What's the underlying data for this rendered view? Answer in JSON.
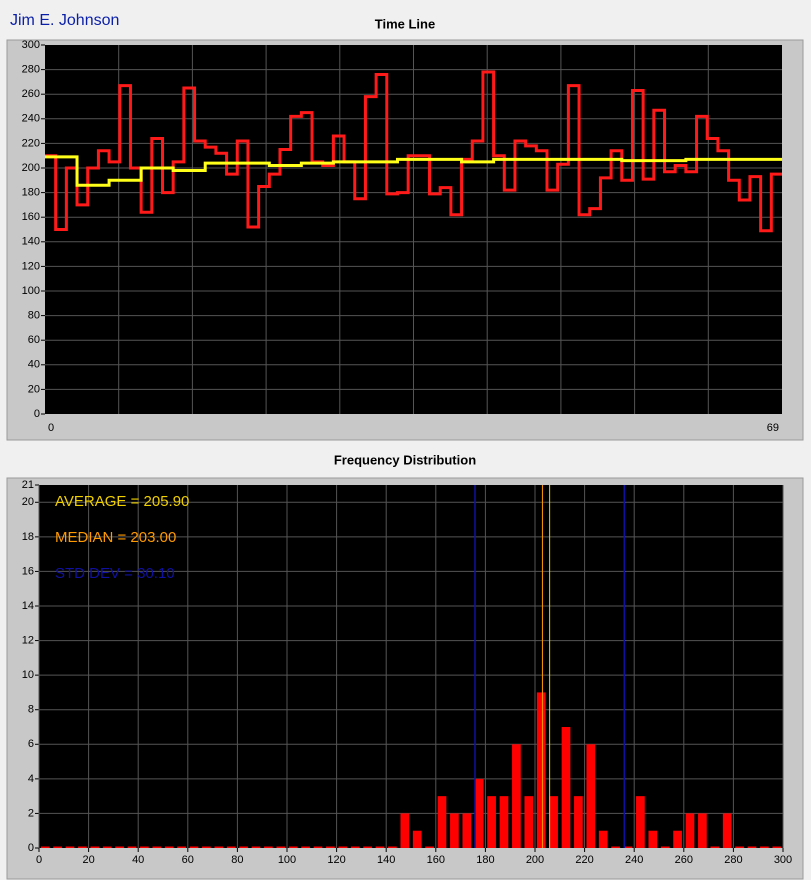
{
  "user": "Jim E. Johnson",
  "chart_data": [
    {
      "type": "line",
      "title": "Time Line",
      "x": [
        0,
        1,
        2,
        3,
        4,
        5,
        6,
        7,
        8,
        9,
        10,
        11,
        12,
        13,
        14,
        15,
        16,
        17,
        18,
        19,
        20,
        21,
        22,
        23,
        24,
        25,
        26,
        27,
        28,
        29,
        30,
        31,
        32,
        33,
        34,
        35,
        36,
        37,
        38,
        39,
        40,
        41,
        42,
        43,
        44,
        45,
        46,
        47,
        48,
        49,
        50,
        51,
        52,
        53,
        54,
        55,
        56,
        57,
        58,
        59,
        60,
        61,
        62,
        63,
        64,
        65,
        66,
        67,
        68,
        69
      ],
      "series": [
        {
          "color": "#ff1a1a",
          "values": [
            210,
            150,
            200,
            170,
            200,
            214,
            205,
            267,
            200,
            164,
            224,
            180,
            205,
            265,
            222,
            217,
            212,
            195,
            222,
            152,
            185,
            195,
            215,
            242,
            245,
            205,
            202,
            226,
            205,
            175,
            258,
            276,
            179,
            180,
            210,
            210,
            179,
            184,
            162,
            207,
            222,
            278,
            210,
            182,
            222,
            218,
            214,
            182,
            203,
            267,
            162,
            167,
            192,
            214,
            190,
            263,
            191,
            247,
            197,
            202,
            197,
            242,
            224,
            214,
            190,
            174,
            193,
            149,
            195,
            195
          ]
        },
        {
          "color": "#ffff1a",
          "values": [
            209,
            209,
            209,
            186,
            186,
            186,
            190,
            190,
            190,
            200,
            200,
            200,
            198,
            198,
            198,
            204,
            204,
            204,
            204,
            204,
            204,
            202,
            202,
            202,
            204,
            204,
            204,
            205,
            205,
            205,
            205,
            205,
            205,
            207,
            207,
            207,
            207,
            207,
            207,
            205,
            205,
            205,
            207,
            207,
            207,
            207,
            207,
            207,
            207,
            207,
            207,
            207,
            207,
            207,
            206,
            206,
            206,
            206,
            206,
            206,
            207,
            207,
            207,
            207,
            207,
            207,
            207,
            207,
            207,
            207
          ]
        }
      ],
      "xlim": [
        0,
        69
      ],
      "xticks": [
        0,
        69
      ],
      "ylim": [
        0,
        300
      ],
      "yticks": [
        0,
        20,
        40,
        60,
        80,
        100,
        120,
        140,
        160,
        180,
        200,
        220,
        240,
        260,
        280,
        300
      ],
      "grid": true
    },
    {
      "type": "histogram",
      "title": "Frequency Distribution",
      "bins": [
        0,
        5,
        10,
        15,
        20,
        25,
        30,
        35,
        40,
        45,
        50,
        55,
        60,
        65,
        70,
        75,
        80,
        85,
        90,
        95,
        100,
        105,
        110,
        115,
        120,
        125,
        130,
        135,
        140,
        145,
        150,
        155,
        160,
        165,
        170,
        175,
        180,
        185,
        190,
        195,
        200,
        205,
        210,
        215,
        220,
        225,
        230,
        235,
        240,
        245,
        250,
        255,
        260,
        265,
        270,
        275,
        280,
        285,
        290,
        295,
        300
      ],
      "values": [
        0,
        0,
        0,
        0,
        0,
        0,
        0,
        0,
        0,
        0,
        0,
        0,
        0,
        0,
        0,
        0,
        0,
        0,
        0,
        0,
        0,
        0,
        0,
        0,
        0,
        0,
        0,
        0,
        0,
        2,
        1,
        0,
        3,
        2,
        2,
        4,
        3,
        3,
        6,
        3,
        9,
        3,
        7,
        3,
        6,
        1,
        0,
        0,
        3,
        1,
        0,
        1,
        2,
        2,
        0,
        2,
        0,
        0,
        0,
        0
      ],
      "color": "#ff0000",
      "xlim": [
        0,
        300
      ],
      "xticks": [
        0,
        20,
        40,
        60,
        80,
        100,
        120,
        140,
        160,
        180,
        200,
        220,
        240,
        260,
        280,
        300
      ],
      "ylim": [
        0,
        21
      ],
      "yticks": [
        0,
        2,
        4,
        6,
        8,
        10,
        12,
        14,
        16,
        18,
        20,
        21
      ],
      "grid": true,
      "stats": [
        {
          "label": "AVERAGE = 205.90",
          "value": 205.9,
          "color": "#f0d000"
        },
        {
          "label": "MEDIAN = 203.00",
          "value": 203,
          "color": "#ff9a00"
        },
        {
          "label": "STD DEV = 30.10",
          "value": 30.1,
          "color": "#1010a0"
        }
      ]
    }
  ]
}
